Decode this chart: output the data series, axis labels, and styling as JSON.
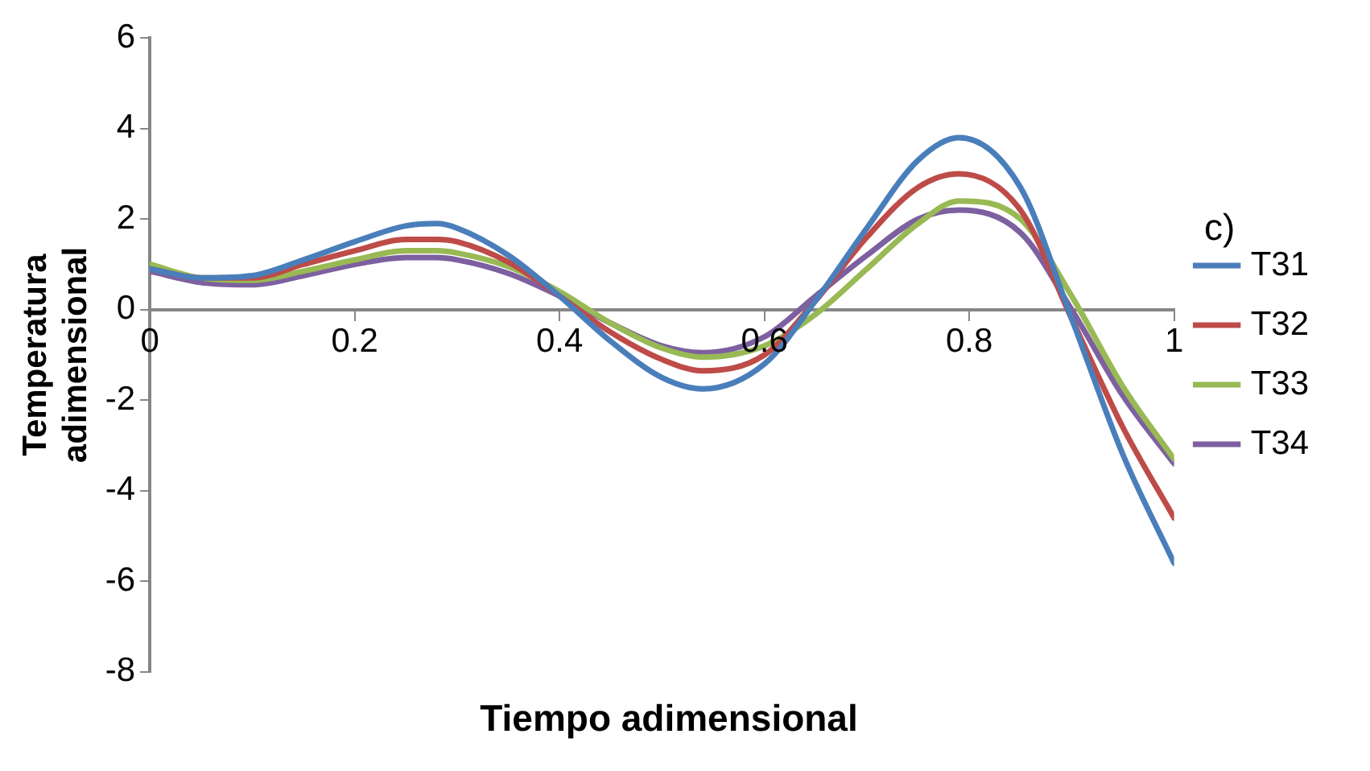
{
  "chart_data": {
    "type": "line",
    "xlabel": "Tiempo adimensional",
    "ylabel": "Temperatura adimensional",
    "annotations": [
      "c)"
    ],
    "x": [
      0,
      0.05,
      0.1,
      0.15,
      0.2,
      0.25,
      0.28,
      0.3,
      0.35,
      0.4,
      0.45,
      0.5,
      0.54,
      0.6,
      0.65,
      0.7,
      0.75,
      0.79,
      0.85,
      0.9,
      0.95,
      1
    ],
    "series": [
      {
        "name": "T31",
        "color": "#4a7ebb",
        "values": [
          0.9,
          0.7,
          0.75,
          1.1,
          1.5,
          1.85,
          1.9,
          1.8,
          1.2,
          0.3,
          -0.7,
          -1.5,
          -1.75,
          -1.2,
          0.2,
          1.8,
          3.3,
          3.8,
          2.7,
          -0.2,
          -3.2,
          -5.6
        ]
      },
      {
        "name": "T32",
        "color": "#be4b48",
        "values": [
          0.9,
          0.7,
          0.7,
          1.0,
          1.3,
          1.55,
          1.55,
          1.5,
          1.05,
          0.3,
          -0.5,
          -1.1,
          -1.35,
          -1.0,
          0.2,
          1.6,
          2.7,
          3.0,
          2.2,
          -0.2,
          -2.6,
          -4.6
        ]
      },
      {
        "name": "T33",
        "color": "#98b954",
        "values": [
          1.0,
          0.7,
          0.65,
          0.85,
          1.1,
          1.3,
          1.3,
          1.25,
          0.95,
          0.4,
          -0.3,
          -0.85,
          -1.05,
          -0.8,
          -0.1,
          0.9,
          1.9,
          2.4,
          2.0,
          0.3,
          -1.7,
          -3.3
        ]
      },
      {
        "name": "T34",
        "color": "#7d60a0",
        "values": [
          0.85,
          0.6,
          0.55,
          0.75,
          1.0,
          1.15,
          1.15,
          1.1,
          0.8,
          0.3,
          -0.3,
          -0.8,
          -0.95,
          -0.6,
          0.3,
          1.2,
          2.0,
          2.2,
          1.7,
          0.0,
          -1.9,
          -3.4
        ]
      }
    ],
    "xlim": [
      0,
      1
    ],
    "xticks": [
      0,
      0.2,
      0.4,
      0.6,
      0.8,
      1
    ],
    "ylim": [
      -8,
      6
    ],
    "yticks": [
      -8,
      -6,
      -4,
      -2,
      0,
      2,
      4,
      6
    ],
    "grid": false,
    "legend": "right",
    "marker": "none",
    "line_style": "solid"
  }
}
